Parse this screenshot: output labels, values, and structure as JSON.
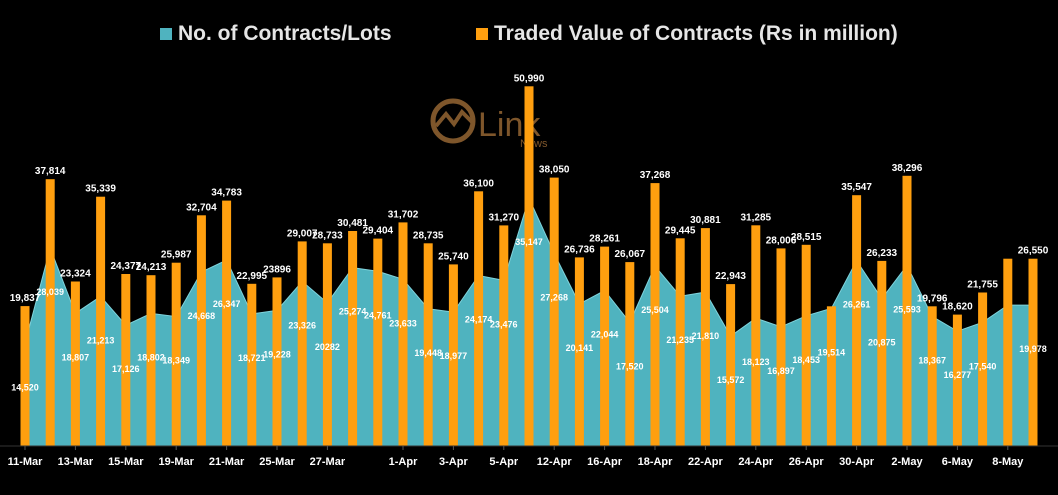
{
  "colors": {
    "background": "#000000",
    "contracts_area": "#4fb3bf",
    "traded_value_bars": "#ff9f0f",
    "label_text": "#ffffff",
    "axis_text": "#ffffff",
    "watermark": "#a8733a"
  },
  "watermark": {
    "brand_main": "Link",
    "brand_sub": "News"
  },
  "chart_data": {
    "type": "bar",
    "legend_position": "top",
    "grid": false,
    "ylim": [
      0,
      55000
    ],
    "categories": [
      "11-Mar",
      "12-Mar",
      "13-Mar",
      "14-Mar",
      "15-Mar",
      "18-Mar",
      "19-Mar",
      "20-Mar",
      "21-Mar",
      "22-Mar",
      "25-Mar",
      "26-Mar",
      "27-Mar",
      "28-Mar",
      "29-Mar",
      "1-Apr",
      "2-Apr",
      "3-Apr",
      "4-Apr",
      "5-Apr",
      "8-Apr",
      "12-Apr",
      "15-Apr",
      "16-Apr",
      "17-Apr",
      "18-Apr",
      "19-Apr",
      "22-Apr",
      "23-Apr",
      "24-Apr",
      "25-Apr",
      "26-Apr",
      "29-Apr",
      "30-Apr",
      "1-May",
      "2-May",
      "3-May",
      "6-May",
      "7-May",
      "8-May",
      "9-May"
    ],
    "x_tick_labels": [
      "11-Mar",
      "13-Mar",
      "15-Mar",
      "19-Mar",
      "21-Mar",
      "25-Mar",
      "27-Mar",
      "1-Apr",
      "3-Apr",
      "5-Apr",
      "12-Apr",
      "16-Apr",
      "18-Apr",
      "22-Apr",
      "24-Apr",
      "26-Apr",
      "30-Apr",
      "2-May",
      "6-May",
      "8-May"
    ],
    "series": [
      {
        "name": "No. of Contracts/Lots",
        "type": "area",
        "values": [
          14520,
          28039,
          18807,
          21213,
          17126,
          18802,
          18349,
          24668,
          26347,
          18721,
          19228,
          23326,
          20282,
          25274,
          24761,
          23633,
          19448,
          18977,
          24174,
          23476,
          35147,
          27268,
          20141,
          22044,
          17520,
          25504,
          21235,
          21810,
          15572,
          18123,
          16897,
          18453,
          19514,
          26261,
          20875,
          25593,
          18367,
          16277,
          17540,
          19978,
          19978
        ],
        "labels": [
          "14,520",
          "28,039",
          "18,807",
          "21,213",
          "17,126",
          "18,802",
          "18,349",
          "24,668",
          "26,347",
          "18,721",
          "19,228",
          "23,326",
          "20282",
          "25,274",
          "24,761",
          "23,633",
          "19,448",
          "18,977",
          "24,174",
          "23,476",
          "35,147",
          "27,268",
          "20,141",
          "22,044",
          "17,520",
          "25,504",
          "21,235",
          "21,810",
          "15,572",
          "18,123",
          "16,897",
          "18,453",
          "19,514",
          "26,261",
          "20,875",
          "25,593",
          "18,367",
          "16,277",
          "17,540",
          "",
          "19,978"
        ]
      },
      {
        "name": "Traded Value of Contracts (Rs in million)",
        "type": "bar",
        "values": [
          19837,
          37814,
          23324,
          35339,
          24377,
          24213,
          25987,
          32704,
          34783,
          22995,
          23896,
          29007,
          28733,
          30481,
          29404,
          31702,
          28735,
          25740,
          36100,
          31270,
          50990,
          38050,
          26736,
          28261,
          26067,
          37268,
          29445,
          30881,
          22943,
          31285,
          28006,
          28515,
          19796,
          35547,
          26233,
          38296,
          19796,
          18620,
          21755,
          26550,
          26550
        ],
        "labels": [
          "19,837",
          "37,814",
          "23,324",
          "35,339",
          "24,377",
          "24,213",
          "25,987",
          "32,704",
          "34,783",
          "22,995",
          "23896",
          "29,007",
          "28,733",
          "30,481",
          "29,404",
          "31,702",
          "28,735",
          "25,740",
          "36,100",
          "31,270",
          "50,990",
          "38,050",
          "26,736",
          "28,261",
          "26,067",
          "37,268",
          "29,445",
          "30,881",
          "22,943",
          "31,285",
          "28,006",
          "28,515",
          "",
          "35,547",
          "26,233",
          "38,296",
          "19,796",
          "18,620",
          "21,755",
          "",
          "26,550"
        ]
      }
    ]
  }
}
